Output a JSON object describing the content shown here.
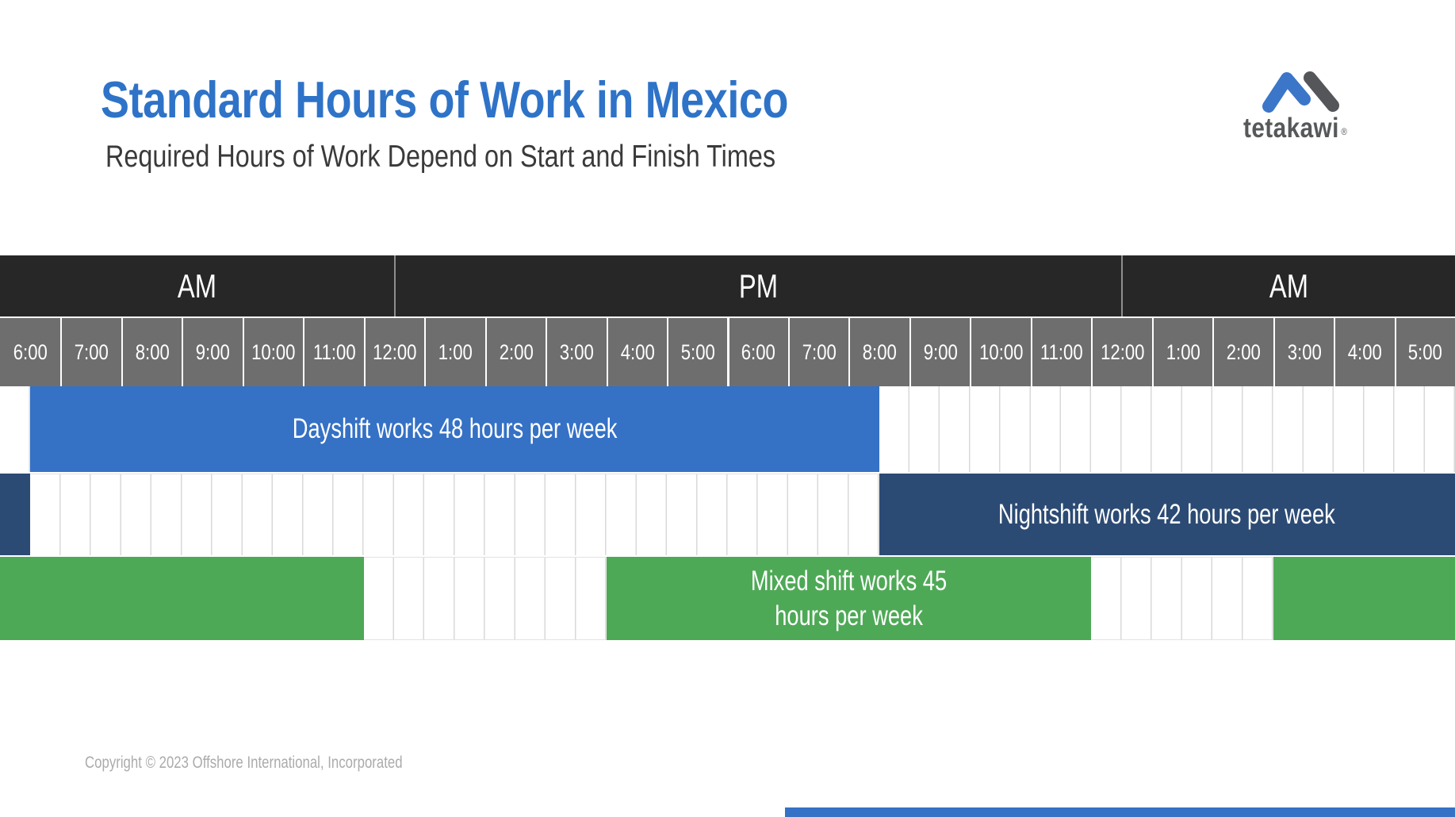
{
  "header": {
    "title": "Standard Hours of Work in Mexico",
    "subtitle": "Required Hours of Work Depend on Start and Finish Times"
  },
  "logo": {
    "wordmark": "tetakawi",
    "registered": "®"
  },
  "chart_data": {
    "type": "gantt",
    "title": "Standard Hours of Work in Mexico",
    "units": "hours offset from the 6:00 AM timeline start; -0.5 and 23.5 are the chart edges",
    "hour_labels": [
      "6:00",
      "7:00",
      "8:00",
      "9:00",
      "10:00",
      "11:00",
      "12:00",
      "1:00",
      "2:00",
      "3:00",
      "4:00",
      "5:00",
      "6:00",
      "7:00",
      "8:00",
      "9:00",
      "10:00",
      "11:00",
      "12:00",
      "1:00",
      "2:00",
      "3:00",
      "4:00",
      "5:00"
    ],
    "meridiem_sections": [
      {
        "label": "AM",
        "from": -0.5,
        "to": 6
      },
      {
        "label": "PM",
        "from": 6,
        "to": 18
      },
      {
        "label": "AM",
        "from": 18,
        "to": 23.5
      }
    ],
    "series": [
      {
        "name": "Dayshift",
        "label": "Dayshift works 48 hours per week",
        "label_lines": [
          "Dayshift works 48 hours per week"
        ],
        "hours_per_week": 48,
        "color": "#3571C5",
        "start_time": "6:00 AM",
        "end_time": "8:00 PM",
        "segments": [
          [
            0,
            14
          ]
        ],
        "label_segment": 0
      },
      {
        "name": "Nightshift",
        "label": "Nightshift works 42 hours per week",
        "label_lines": [
          "Nightshift works 42 hours per week"
        ],
        "hours_per_week": 42,
        "color": "#2C4B74",
        "start_time": "8:00 PM",
        "end_time": "6:00 AM",
        "segments": [
          [
            -0.5,
            0
          ],
          [
            14,
            23.5
          ]
        ],
        "label_segment": 1
      },
      {
        "name": "Mixed shift",
        "label": "Mixed shift works 45 hours per week",
        "label_lines": [
          "Mixed shift works 45",
          "hours per week"
        ],
        "hours_per_week": 45,
        "color": "#4EA956",
        "segments": [
          [
            -0.5,
            5.5
          ],
          [
            9.5,
            17.5
          ],
          [
            20.5,
            23.5
          ]
        ],
        "label_segment": 1
      }
    ],
    "colors": {
      "meridiem_band": "#272727",
      "hour_row": "#6F6E6E",
      "gridline": "#D9D9D9",
      "dayshift": "#3571C5",
      "nightshift": "#2C4B74",
      "mixed_shift": "#4EA956",
      "title": "#2E73C8",
      "accent_strip": "#3571C5"
    }
  },
  "footer": {
    "copyright": "Copyright © 2023 Offshore International, Incorporated"
  }
}
